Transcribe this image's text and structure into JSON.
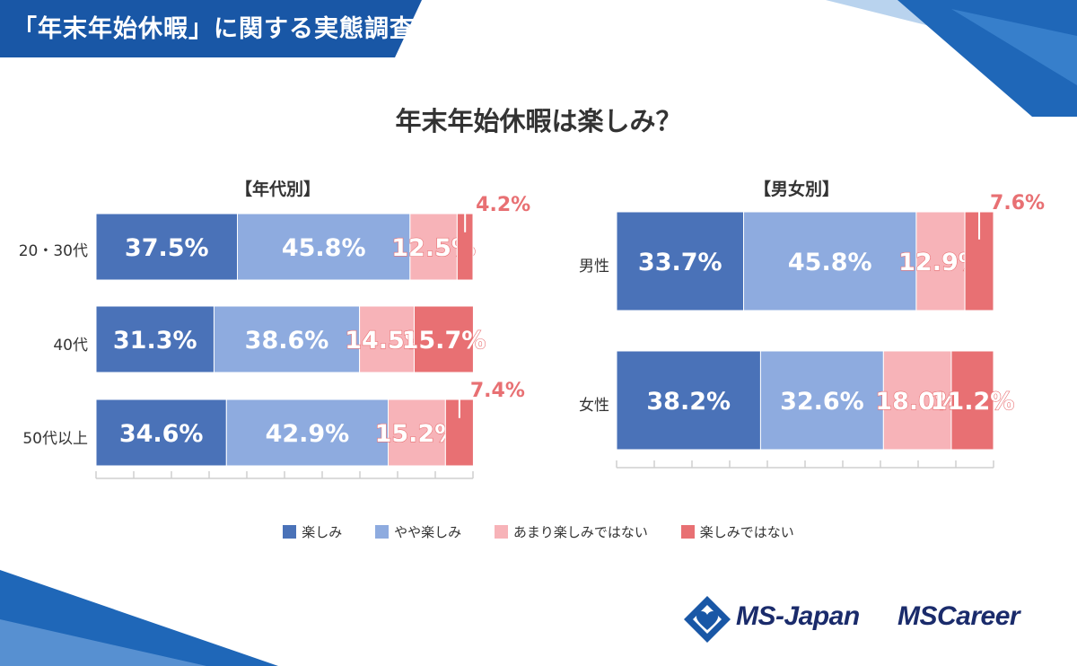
{
  "header": {
    "title": "「年末年始休暇」に関する実態調査"
  },
  "colors": {
    "header_blue": "#1957a6",
    "series": [
      "#4a72b8",
      "#8eabdf",
      "#f7b3b8",
      "#e87073"
    ],
    "outside_label": "#e87073",
    "text": "#333333",
    "logo": "#1a2b6b"
  },
  "legend": {
    "items": [
      {
        "label": "楽しみ",
        "icon": "square-swatch"
      },
      {
        "label": "やや楽しみ",
        "icon": "square-swatch"
      },
      {
        "label": "あまり楽しみではない",
        "icon": "square-swatch"
      },
      {
        "label": "楽しみではない",
        "icon": "square-swatch"
      }
    ]
  },
  "logos": {
    "ms_japan": "MS-Japan",
    "ms_career": "MSCareer",
    "ms_japan_icon": "diamond-heart-logo-icon"
  },
  "chart_data": [
    {
      "type": "bar",
      "orientation": "horizontal",
      "stacked": true,
      "title": "年末年始休暇は楽しみ？",
      "subtitle": "【年代別】",
      "categories": [
        "20・30代",
        "40代",
        "50代以上"
      ],
      "series": [
        {
          "name": "楽しみ",
          "values": [
            37.5,
            31.3,
            34.6
          ]
        },
        {
          "name": "やや楽しみ",
          "values": [
            45.8,
            38.6,
            42.9
          ]
        },
        {
          "name": "あまり楽しみではない",
          "values": [
            12.5,
            14.5,
            15.2
          ]
        },
        {
          "name": "楽しみではない",
          "values": [
            4.2,
            15.7,
            7.4
          ]
        }
      ],
      "value_labels": [
        [
          "37.5%",
          "45.8%",
          "12.5%",
          "4.2%"
        ],
        [
          "31.3%",
          "38.6%",
          "14.5%",
          "15.7%"
        ],
        [
          "34.6%",
          "42.9%",
          "15.2%",
          "7.4%"
        ]
      ],
      "xlim": [
        0,
        100
      ],
      "unit": "%"
    },
    {
      "type": "bar",
      "orientation": "horizontal",
      "stacked": true,
      "title": "年末年始休暇は楽しみ？",
      "subtitle": "【男女別】",
      "categories": [
        "男性",
        "女性"
      ],
      "series": [
        {
          "name": "楽しみ",
          "values": [
            33.7,
            38.2
          ]
        },
        {
          "name": "やや楽しみ",
          "values": [
            45.8,
            32.6
          ]
        },
        {
          "name": "あまり楽しみではない",
          "values": [
            12.9,
            18.0
          ]
        },
        {
          "name": "楽しみではない",
          "values": [
            7.6,
            11.2
          ]
        }
      ],
      "value_labels": [
        [
          "33.7%",
          "45.8%",
          "12.9%",
          "7.6%"
        ],
        [
          "38.2%",
          "32.6%",
          "18.0%",
          "11.2%"
        ]
      ],
      "xlim": [
        0,
        100
      ],
      "unit": "%"
    }
  ]
}
